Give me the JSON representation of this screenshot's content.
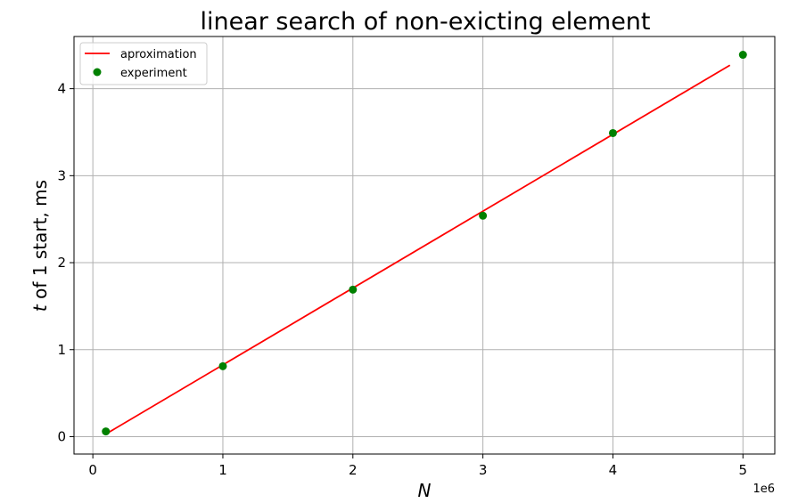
{
  "chart_data": {
    "type": "line",
    "title": "linear search of non-exicting element",
    "xlabel": "N",
    "ylabel_italic": "t",
    "ylabel_rest": " of 1 start, ms",
    "x_offset_label": "1e6",
    "xlim": [
      -0.145,
      5.245
    ],
    "ylim": [
      -0.2,
      4.6
    ],
    "x_ticks": [
      0,
      1,
      2,
      3,
      4,
      5
    ],
    "y_ticks": [
      0,
      1,
      2,
      3,
      4
    ],
    "grid": true,
    "legend_position": "top-left",
    "series": [
      {
        "name": "aproximation",
        "kind": "line",
        "color": "#ff0000",
        "x": [
          0.1,
          4.9
        ],
        "y": [
          0.03,
          4.27
        ]
      },
      {
        "name": "experiment",
        "kind": "scatter",
        "color": "#008000",
        "x": [
          0.1,
          1,
          2,
          3,
          4,
          5
        ],
        "y": [
          0.06,
          0.81,
          1.69,
          2.54,
          3.49,
          4.39
        ]
      }
    ]
  }
}
